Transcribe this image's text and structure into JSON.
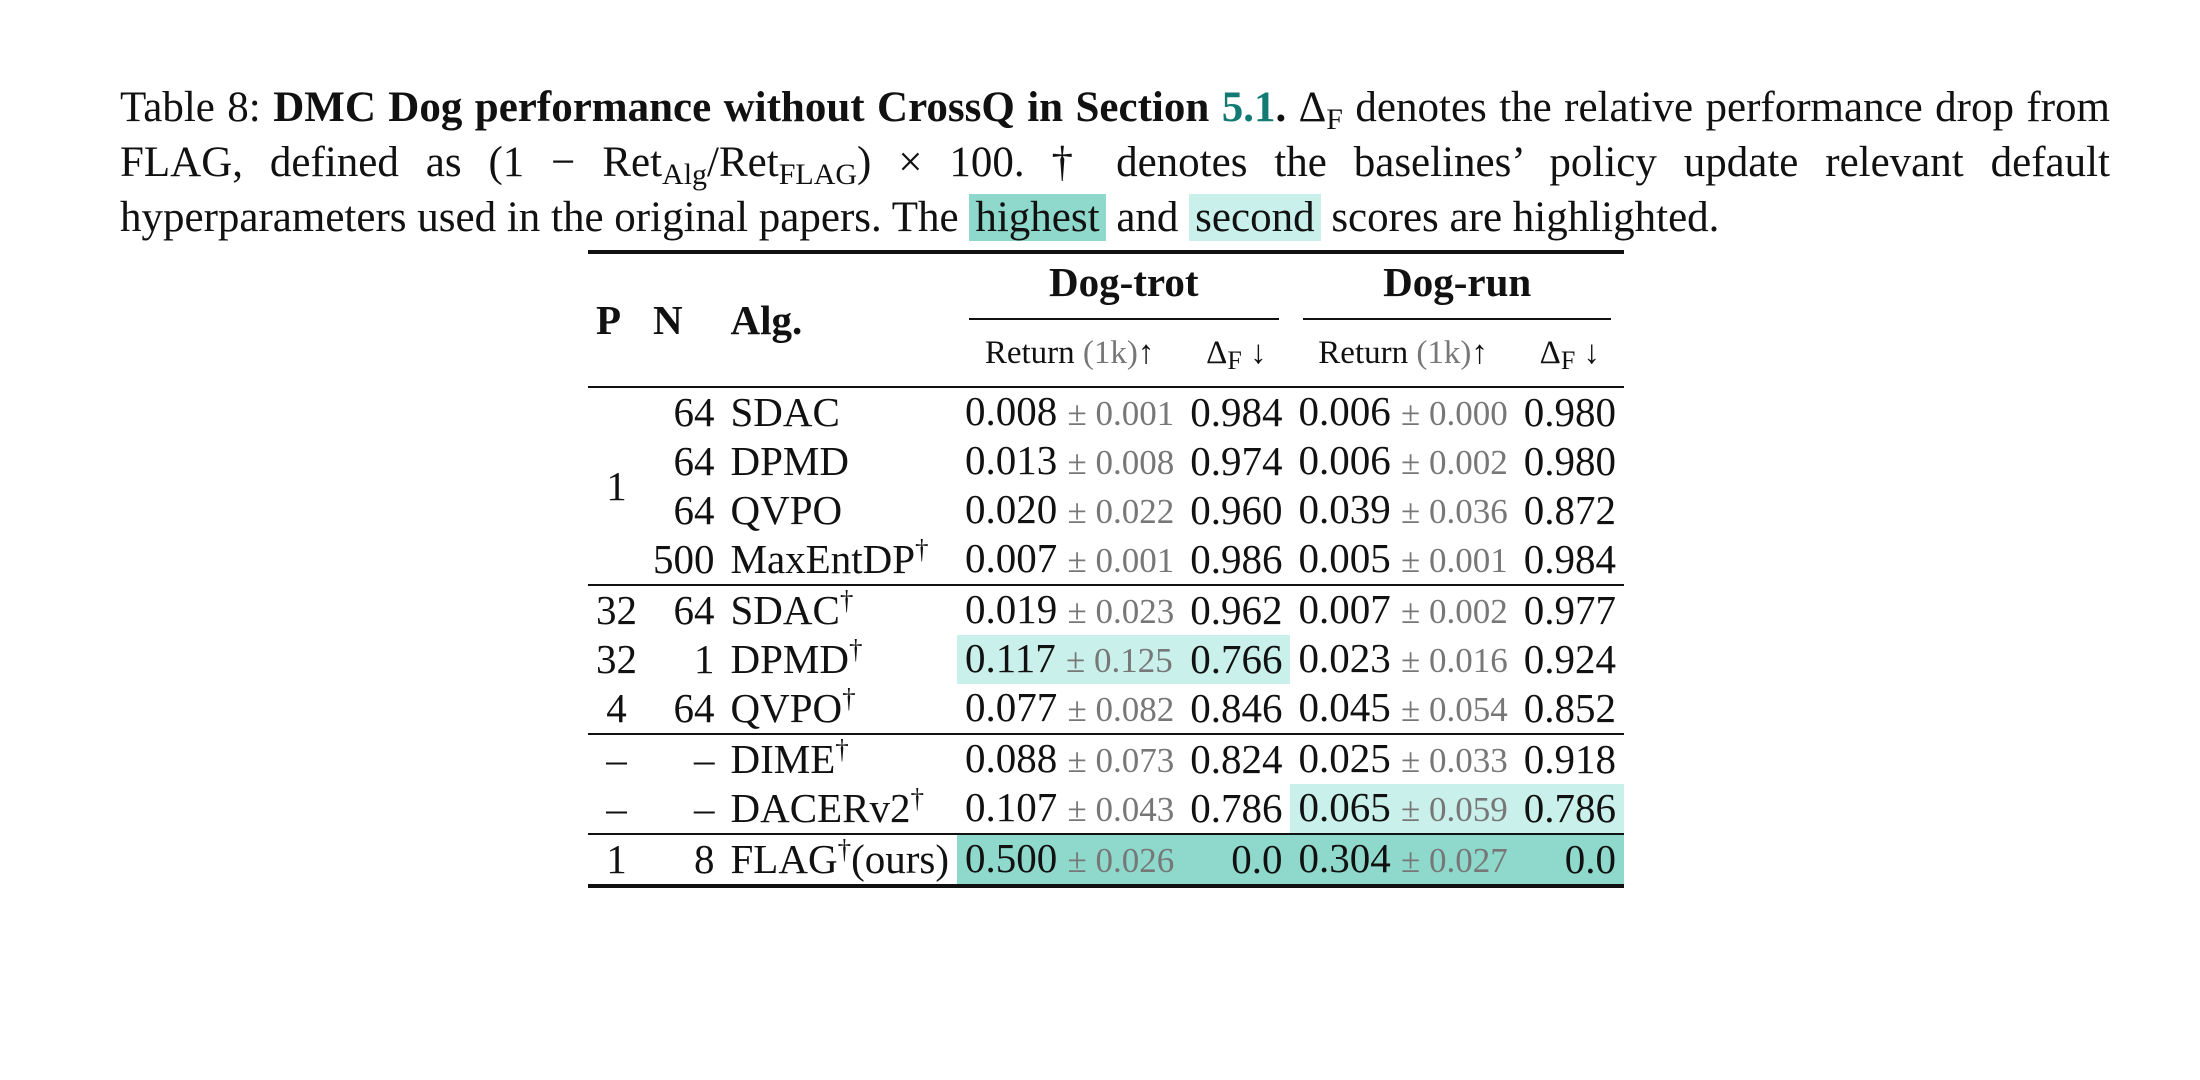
{
  "caption": {
    "prefix": "Table 8: ",
    "title": "DMC Dog performance without CrossQ in Section ",
    "section_ref": "5.1",
    "title_end": ".",
    "delta_symbol": "Δ",
    "delta_sub": "F",
    "text1": " denotes the relative performance drop from FLAG, defined as (1 − Ret",
    "sub_alg": "Alg",
    "text2": "/Ret",
    "sub_flag": "FLAG",
    "text3": ") × 100. † denotes the baselines’ policy update relevant default hyperparameters used in the original papers. The ",
    "highest_label": "highest",
    "and_word": " and ",
    "second_label": "second",
    "text4": " scores are highlighted."
  },
  "table": {
    "headers": {
      "p": "P",
      "n": "N",
      "alg": "Alg.",
      "group1": "Dog-trot",
      "group2": "Dog-run",
      "return_label": "Return ",
      "return_unit": "(1k)",
      "up_arrow": "↑",
      "delta_label": "Δ",
      "delta_sub": "F",
      "down_arrow": " ↓"
    },
    "pm": "±",
    "dagger": "†",
    "block1_p": "1",
    "rows": [
      {
        "n": "64",
        "alg": "SDAC",
        "dag": "",
        "suffix": "",
        "trot_mean": "0.008",
        "trot_std": "0.001",
        "trot_delta": "0.984",
        "run_mean": "0.006",
        "run_std": "0.000",
        "run_delta": "0.980"
      },
      {
        "n": "64",
        "alg": "DPMD",
        "dag": "",
        "suffix": "",
        "trot_mean": "0.013",
        "trot_std": "0.008",
        "trot_delta": "0.974",
        "run_mean": "0.006",
        "run_std": "0.002",
        "run_delta": "0.980"
      },
      {
        "n": "64",
        "alg": "QVPO",
        "dag": "",
        "suffix": "",
        "trot_mean": "0.020",
        "trot_std": "0.022",
        "trot_delta": "0.960",
        "run_mean": "0.039",
        "run_std": "0.036",
        "run_delta": "0.872"
      },
      {
        "n": "500",
        "alg": "MaxEntDP",
        "dag": "†",
        "suffix": "",
        "trot_mean": "0.007",
        "trot_std": "0.001",
        "trot_delta": "0.986",
        "run_mean": "0.005",
        "run_std": "0.001",
        "run_delta": "0.984"
      },
      {
        "p": "32",
        "n": "64",
        "alg": "SDAC",
        "dag": "†",
        "suffix": "",
        "trot_mean": "0.019",
        "trot_std": "0.023",
        "trot_delta": "0.962",
        "run_mean": "0.007",
        "run_std": "0.002",
        "run_delta": "0.977"
      },
      {
        "p": "32",
        "n": "1",
        "alg": "DPMD",
        "dag": "†",
        "suffix": "",
        "trot_mean": "0.117",
        "trot_std": "0.125",
        "trot_delta": "0.766",
        "run_mean": "0.023",
        "run_std": "0.016",
        "run_delta": "0.924"
      },
      {
        "p": "4",
        "n": "64",
        "alg": "QVPO",
        "dag": "†",
        "suffix": "",
        "trot_mean": "0.077",
        "trot_std": "0.082",
        "trot_delta": "0.846",
        "run_mean": "0.045",
        "run_std": "0.054",
        "run_delta": "0.852"
      },
      {
        "p": "–",
        "n": "–",
        "alg": "DIME",
        "dag": "†",
        "suffix": "",
        "trot_mean": "0.088",
        "trot_std": "0.073",
        "trot_delta": "0.824",
        "run_mean": "0.025",
        "run_std": "0.033",
        "run_delta": "0.918"
      },
      {
        "p": "–",
        "n": "–",
        "alg": "DACERv2",
        "dag": "†",
        "suffix": "",
        "trot_mean": "0.107",
        "trot_std": "0.043",
        "trot_delta": "0.786",
        "run_mean": "0.065",
        "run_std": "0.059",
        "run_delta": "0.786"
      },
      {
        "p": "1",
        "n": "8",
        "alg": "FLAG",
        "dag": "†",
        "suffix": "(ours)",
        "trot_mean": "0.500",
        "trot_std": "0.026",
        "trot_delta": "0.0",
        "run_mean": "0.304",
        "run_std": "0.027",
        "run_delta": "0.0"
      }
    ],
    "highlight_colors": {
      "highest": "#8fd9cc",
      "second": "#c9f0ea"
    }
  }
}
